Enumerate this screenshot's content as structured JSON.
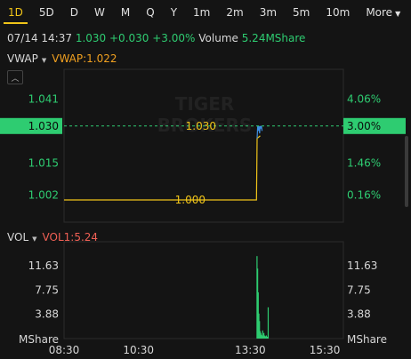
{
  "tabs": [
    {
      "label": "1D",
      "active": true
    },
    {
      "label": "5D"
    },
    {
      "label": "D"
    },
    {
      "label": "W"
    },
    {
      "label": "M"
    },
    {
      "label": "Q"
    },
    {
      "label": "Y"
    },
    {
      "label": "1m"
    },
    {
      "label": "2m"
    },
    {
      "label": "3m"
    },
    {
      "label": "5m"
    },
    {
      "label": "10m"
    }
  ],
  "more_label": "More",
  "quote": {
    "datetime": "07/14 14:37",
    "price": "1.030",
    "change": "+0.030",
    "pct": "+3.00%",
    "volume_label": "Volume",
    "volume": "5.24MShare"
  },
  "vwap": {
    "label": "VWAP",
    "value": "VWAP:1.022"
  },
  "vol": {
    "label": "VOL",
    "value": "VOL1:5.24"
  },
  "watermark": "TIGER BROKERS",
  "colors": {
    "up": "#2ecc71",
    "avg": "#f0c419",
    "price": "#3d8ee0",
    "vol_bar": "#2ecc71",
    "vwap": "#f0a020",
    "vol1": "#f06055"
  },
  "chart_data": [
    {
      "type": "line",
      "title": "",
      "x_ticks": [
        "08:30",
        "10:30",
        "13:30",
        "15:30"
      ],
      "y_ticks": [
        "1.041",
        "1.030",
        "1.015",
        "1.002"
      ],
      "y2_ticks": [
        "4.06%",
        "3.00%",
        "1.46%",
        "0.16%"
      ],
      "ylim": [
        0.991,
        1.053
      ],
      "current_price": "1.030",
      "current_pct": "3.00%",
      "annotations": [
        "1.030",
        "1.000"
      ],
      "series": [
        {
          "x": [
            "08:30",
            "13:40",
            "13:41",
            "13:46"
          ],
          "values": [
            1.0,
            1.0,
            1.025,
            1.026
          ]
        },
        {
          "x": [
            "13:41",
            "13:42",
            "13:43",
            "13:44",
            "13:45",
            "13:46",
            "13:47",
            "13:48",
            "13:49"
          ],
          "values": [
            1.025,
            1.03,
            1.028,
            1.03,
            1.027,
            1.03,
            1.029,
            1.03,
            1.028
          ]
        }
      ]
    },
    {
      "type": "bar",
      "ylabel": "MShare",
      "y_ticks": [
        "11.63",
        "7.75",
        "3.88"
      ],
      "y2_ticks": [
        "11.63",
        "7.75",
        "3.88"
      ],
      "ylim": [
        0,
        15.5
      ],
      "x": [
        "13:40",
        "13:41",
        "13:42",
        "13:43",
        "13:44",
        "13:45",
        "13:46",
        "13:47",
        "13:48",
        "13:49",
        "13:50",
        "13:51",
        "13:52",
        "13:53",
        "13:54",
        "13:55",
        "13:56",
        "13:57",
        "13:58"
      ],
      "values": [
        13.2,
        11.2,
        7.4,
        4.0,
        2.8,
        1.2,
        0.9,
        0.6,
        0.5,
        1.3,
        0.4,
        0.9,
        0.5,
        0.4,
        0.3,
        0.5,
        0.3,
        0.3,
        5.0
      ]
    }
  ]
}
